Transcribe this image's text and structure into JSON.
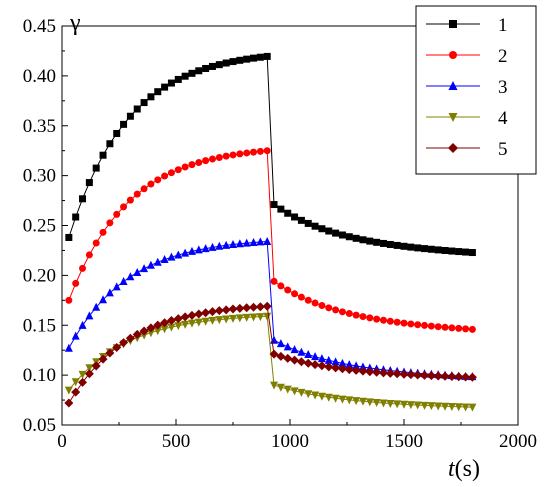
{
  "chart_data": {
    "type": "line",
    "xlabel_var": "t",
    "xlabel_unit": "(s)",
    "ylabel": "γ",
    "xlim": [
      0,
      2000
    ],
    "ylim": [
      0.05,
      0.45
    ],
    "x_ticks": [
      "0",
      "500",
      "1000",
      "1500",
      "2000"
    ],
    "y_ticks": [
      "0.05",
      "0.10",
      "0.15",
      "0.20",
      "0.25",
      "0.30",
      "0.35",
      "0.40",
      "0.45"
    ],
    "grid": false,
    "legend_position": "top-right",
    "series": [
      {
        "name": "1",
        "color": "#000000",
        "marker": "square",
        "load": {
          "a": 0.238,
          "b": 0.4195
        },
        "unload": {
          "a": 0.271,
          "b": 0.221
        }
      },
      {
        "name": "2",
        "color": "#ff0000",
        "marker": "circle",
        "load": {
          "a": 0.175,
          "b": 0.325
        },
        "unload": {
          "a": 0.194,
          "b": 0.144
        }
      },
      {
        "name": "3",
        "color": "#0000ff",
        "marker": "triangle-up",
        "load": {
          "a": 0.127,
          "b": 0.234
        },
        "unload": {
          "a": 0.135,
          "b": 0.097
        }
      },
      {
        "name": "4",
        "color": "#808000",
        "marker": "triangle-down",
        "load": {
          "a": 0.085,
          "b": 0.159
        },
        "unload": {
          "a": 0.09,
          "b": 0.067
        }
      },
      {
        "name": "5",
        "color": "#800000",
        "marker": "diamond",
        "load": {
          "a": 0.072,
          "b": 0.169
        },
        "unload": {
          "a": 0.121,
          "b": 0.097
        }
      }
    ],
    "x_load": {
      "start": 30,
      "end": 900,
      "step": 30
    },
    "x_unload": {
      "start": 930,
      "end": 1800,
      "step": 30
    }
  }
}
